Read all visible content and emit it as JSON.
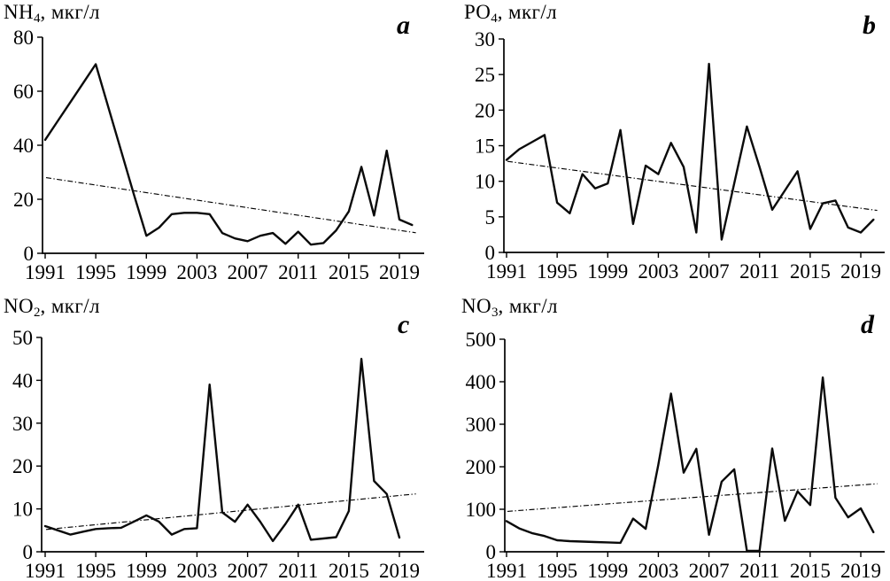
{
  "figure": {
    "description": "Four-panel time series of nutrient concentrations with dashed linear trend lines",
    "units_label": "мкг/л",
    "background": "#ffffff",
    "line_color": "#000000",
    "trend_color": "#000000",
    "panel_letters": [
      "a",
      "b",
      "c",
      "d"
    ]
  },
  "chart_data": [
    {
      "panel": "a",
      "letter": "a",
      "type": "line",
      "title": {
        "base": "NH",
        "sub": "4",
        "units": ", мкг/л"
      },
      "xlabel": "",
      "ylabel": "NH4, мкг/л",
      "ylim": [
        0,
        80
      ],
      "yticks": [
        0,
        20,
        40,
        60,
        80
      ],
      "xticks": [
        1991,
        1995,
        1999,
        2003,
        2007,
        2011,
        2015,
        2019
      ],
      "grid": false,
      "legend": "none",
      "years": [
        1991,
        1992,
        1993,
        1994,
        1995,
        1996,
        1997,
        1998,
        1999,
        2000,
        2001,
        2002,
        2003,
        2004,
        2005,
        2006,
        2007,
        2008,
        2009,
        2010,
        2011,
        2012,
        2013,
        2014,
        2015,
        2016,
        2017,
        2018,
        2019,
        2020
      ],
      "values": [
        42,
        49,
        56,
        63,
        70,
        54,
        38,
        22,
        6.5,
        9.5,
        14.5,
        15,
        15,
        14.5,
        7.5,
        5.5,
        4.5,
        6.5,
        7.5,
        3.5,
        8,
        3.2,
        3.8,
        8.5,
        15.5,
        32,
        14,
        38,
        12.5,
        10.5
      ],
      "trend": {
        "style": "dash-dot",
        "start_value": 28,
        "end_value": 7.6
      }
    },
    {
      "panel": "b",
      "letter": "b",
      "type": "line",
      "title": {
        "base": "PO",
        "sub": "4",
        "units": ", мкг/л"
      },
      "xlabel": "",
      "ylabel": "PO4, мкг/л",
      "ylim": [
        0,
        30
      ],
      "yticks": [
        0,
        5,
        10,
        15,
        20,
        25,
        30
      ],
      "xticks": [
        1991,
        1995,
        1999,
        2003,
        2007,
        2011,
        2015,
        2019
      ],
      "grid": false,
      "legend": "none",
      "years": [
        1991,
        1992,
        1993,
        1994,
        1995,
        1996,
        1997,
        1998,
        1999,
        2000,
        2001,
        2002,
        2003,
        2004,
        2005,
        2006,
        2007,
        2008,
        2009,
        2010,
        2011,
        2012,
        2013,
        2014,
        2015,
        2016,
        2017,
        2018,
        2019,
        2020
      ],
      "values": [
        13,
        14.5,
        15.5,
        16.5,
        7,
        5.5,
        11,
        9,
        9.7,
        17.2,
        4,
        12.2,
        11,
        15.4,
        12,
        2.8,
        26.5,
        1.8,
        9.7,
        17.7,
        12,
        6,
        8.7,
        11.4,
        3.3,
        6.9,
        7.3,
        3.5,
        2.8,
        4.6
      ],
      "trend": {
        "style": "dash-dot",
        "start_value": 12.8,
        "end_value": 5.9
      }
    },
    {
      "panel": "c",
      "letter": "c",
      "type": "line",
      "title": {
        "base": "NO",
        "sub": "2",
        "units": ", мкг/л"
      },
      "xlabel": "",
      "ylabel": "NO2, мкг/л",
      "ylim": [
        0,
        50
      ],
      "yticks": [
        0,
        10,
        20,
        30,
        40,
        50
      ],
      "xticks": [
        1991,
        1995,
        1999,
        2003,
        2007,
        2011,
        2015,
        2019
      ],
      "grid": false,
      "legend": "none",
      "years": [
        1991,
        1992,
        1993,
        1994,
        1995,
        1996,
        1997,
        1998,
        1999,
        2000,
        2001,
        2002,
        2003,
        2004,
        2005,
        2006,
        2007,
        2008,
        2009,
        2010,
        2011,
        2012,
        2013,
        2014,
        2015,
        2016,
        2017,
        2018,
        2019
      ],
      "values": [
        6,
        5,
        4,
        4.7,
        5.3,
        5.5,
        5.6,
        7,
        8.5,
        7,
        4,
        5.3,
        5.5,
        39,
        9.2,
        7,
        11,
        7,
        2.5,
        6.5,
        11,
        2.8,
        3.1,
        3.4,
        9.5,
        45,
        16.5,
        13.5,
        3.3
      ],
      "trend": {
        "style": "dash-dot",
        "start_value": 5.2,
        "end_value": 13.5
      }
    },
    {
      "panel": "d",
      "letter": "d",
      "type": "line",
      "title": {
        "base": "NO",
        "sub": "3",
        "units": ", мкг/л"
      },
      "xlabel": "",
      "ylabel": "NO3, мкг/л",
      "ylim": [
        0,
        500
      ],
      "yticks": [
        0,
        100,
        200,
        300,
        400,
        500
      ],
      "xticks": [
        1991,
        1995,
        1999,
        2003,
        2007,
        2011,
        2015,
        2019
      ],
      "grid": false,
      "legend": "none",
      "years": [
        1991,
        1992,
        1993,
        1994,
        1995,
        1996,
        1997,
        1998,
        1999,
        2000,
        2001,
        2002,
        2003,
        2004,
        2005,
        2006,
        2007,
        2008,
        2009,
        2010,
        2011,
        2012,
        2013,
        2014,
        2015,
        2016,
        2017,
        2018,
        2019,
        2020
      ],
      "values": [
        72,
        55,
        44,
        37,
        27,
        25,
        24,
        23,
        22,
        21,
        78,
        54,
        205,
        372,
        186,
        242,
        40,
        165,
        194,
        2,
        2,
        243,
        73,
        142,
        110,
        410,
        127,
        81,
        102,
        46
      ],
      "trend": {
        "style": "dash-dot",
        "start_value": 95,
        "end_value": 160
      }
    }
  ]
}
